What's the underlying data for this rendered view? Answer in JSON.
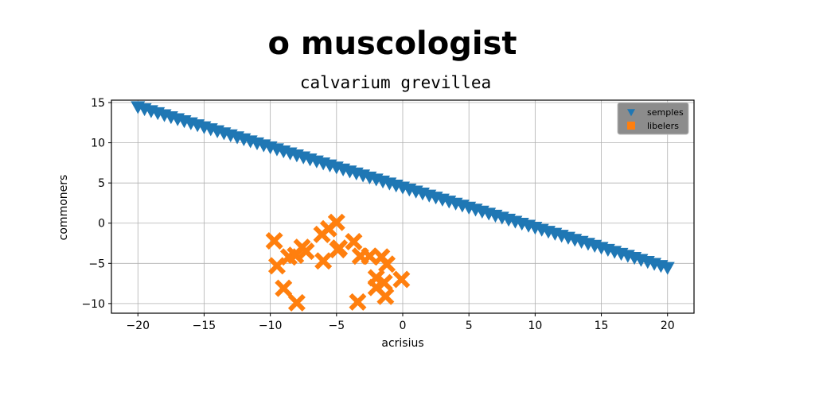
{
  "chart_data": {
    "type": "scatter",
    "title": "o muscologist",
    "subtitle": "calvarium grevillea",
    "xlabel": "acrisius",
    "ylabel": "commoners",
    "xlim": [
      -22,
      22
    ],
    "ylim": [
      -11.2,
      15.3
    ],
    "xticks": [
      -20,
      -15,
      -10,
      -5,
      0,
      5,
      10,
      15,
      20
    ],
    "yticks": [
      -10,
      -5,
      0,
      5,
      10,
      15
    ],
    "grid": true,
    "legend_position": "top-right",
    "series": [
      {
        "name": "semples",
        "marker": "triangle-down",
        "color": "#1f77b4",
        "x": [
          -20.0,
          -19.5,
          -19.0,
          -18.5,
          -18.0,
          -17.5,
          -17.0,
          -16.5,
          -16.0,
          -15.5,
          -15.0,
          -14.5,
          -14.0,
          -13.5,
          -13.0,
          -12.5,
          -12.0,
          -11.5,
          -11.0,
          -10.5,
          -10.0,
          -9.5,
          -9.0,
          -8.5,
          -8.0,
          -7.5,
          -7.0,
          -6.5,
          -6.0,
          -5.5,
          -5.0,
          -4.5,
          -4.0,
          -3.5,
          -3.0,
          -2.5,
          -2.0,
          -1.5,
          -1.0,
          -0.5,
          0.0,
          0.5,
          1.0,
          1.5,
          2.0,
          2.5,
          3.0,
          3.5,
          4.0,
          4.5,
          5.0,
          5.5,
          6.0,
          6.5,
          7.0,
          7.5,
          8.0,
          8.5,
          9.0,
          9.5,
          10.0,
          10.5,
          11.0,
          11.5,
          12.0,
          12.5,
          13.0,
          13.5,
          14.0,
          14.5,
          15.0,
          15.5,
          16.0,
          16.5,
          17.0,
          17.5,
          18.0,
          18.5,
          19.0,
          19.5,
          20.0
        ],
        "y": [
          14.5,
          14.25,
          14.0,
          13.75,
          13.5,
          13.25,
          13.0,
          12.75,
          12.5,
          12.25,
          12.0,
          11.75,
          11.5,
          11.25,
          11.0,
          10.75,
          10.5,
          10.25,
          10.0,
          9.75,
          9.5,
          9.25,
          9.0,
          8.75,
          8.5,
          8.25,
          8.0,
          7.75,
          7.5,
          7.25,
          7.0,
          6.75,
          6.5,
          6.25,
          6.0,
          5.75,
          5.5,
          5.25,
          5.0,
          4.75,
          4.5,
          4.25,
          4.0,
          3.75,
          3.5,
          3.25,
          3.0,
          2.75,
          2.5,
          2.25,
          2.0,
          1.75,
          1.5,
          1.25,
          1.0,
          0.75,
          0.5,
          0.25,
          0.0,
          -0.25,
          -0.5,
          -0.75,
          -1.0,
          -1.25,
          -1.5,
          -1.75,
          -2.0,
          -2.25,
          -2.5,
          -2.75,
          -3.0,
          -3.25,
          -3.5,
          -3.75,
          -4.0,
          -4.25,
          -4.5,
          -4.75,
          -5.0,
          -5.25,
          -5.5
        ]
      },
      {
        "name": "libelers",
        "marker": "x-filled",
        "color": "#ff7f0e",
        "x": [
          -9.7,
          -9.5,
          -9.0,
          -8.6,
          -8.1,
          -8.0,
          -7.6,
          -7.3,
          -6.1,
          -6.0,
          -5.6,
          -5.0,
          -4.9,
          -4.8,
          -3.7,
          -3.4,
          -3.2,
          -2.5,
          -2.0,
          -2.0,
          -1.6,
          -1.4,
          -1.3,
          -1.2,
          -0.1
        ],
        "y": [
          -2.2,
          -5.3,
          -8.1,
          -4.2,
          -4.0,
          -9.9,
          -3.0,
          -3.5,
          -1.4,
          -4.7,
          -0.7,
          0.1,
          -3.3,
          -3.1,
          -2.3,
          -9.8,
          -4.1,
          -4.1,
          -6.8,
          -8.0,
          -4.2,
          -7.4,
          -9.1,
          -5.1,
          -7.0
        ]
      }
    ]
  }
}
